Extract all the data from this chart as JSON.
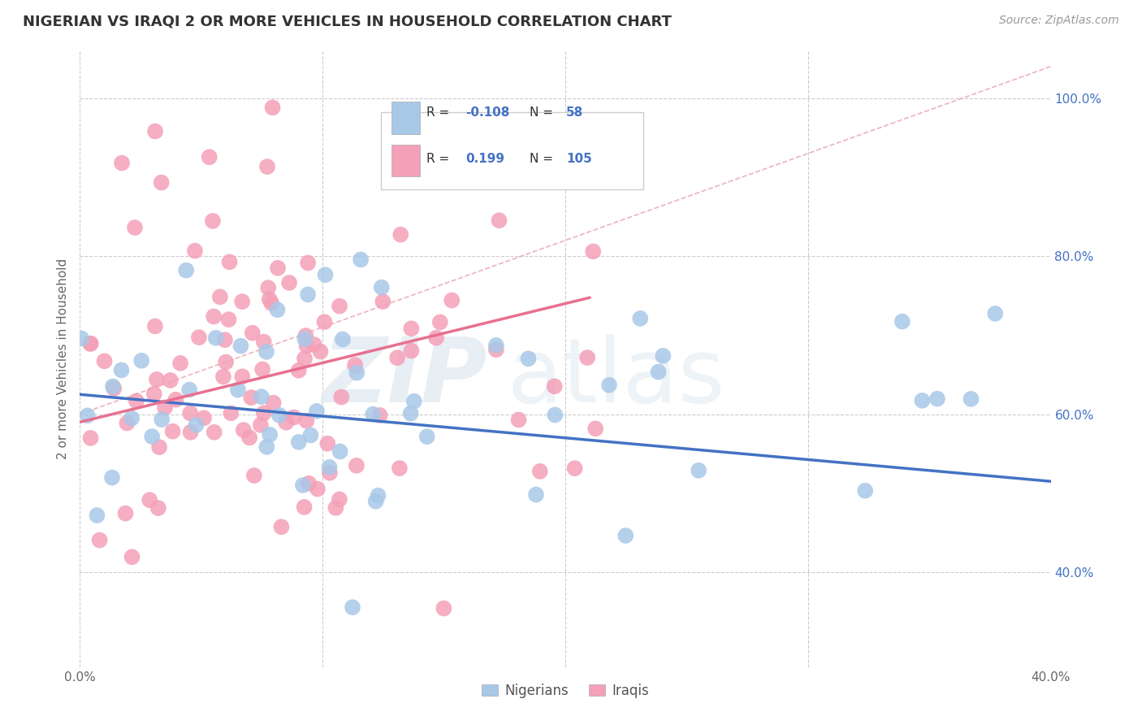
{
  "title": "NIGERIAN VS IRAQI 2 OR MORE VEHICLES IN HOUSEHOLD CORRELATION CHART",
  "source": "Source: ZipAtlas.com",
  "ylabel_label": "2 or more Vehicles in Household",
  "nigerian_color": "#a8c8e8",
  "iraqi_color": "#f4a0b8",
  "nigerian_line_color": "#4472c4",
  "iraqi_line_color": "#e87090",
  "dashed_line_color": "#e8a0b0",
  "ytick_color": "#4472c4",
  "xmin": 0.0,
  "xmax": 0.4,
  "ymin": 0.28,
  "ymax": 1.06,
  "xtick_positions": [
    0.0,
    0.1,
    0.2,
    0.3,
    0.4
  ],
  "xtick_labels": [
    "0.0%",
    "",
    "",
    "",
    "40.0%"
  ],
  "ytick_positions": [
    0.4,
    0.6,
    0.8,
    1.0
  ],
  "ytick_labels": [
    "40.0%",
    "60.0%",
    "80.0%",
    "100.0%"
  ],
  "legend_r1": "-0.108",
  "legend_n1": "58",
  "legend_r2": "0.199",
  "legend_n2": "105",
  "watermark_zip": "ZIP",
  "watermark_atlas": "atlas"
}
